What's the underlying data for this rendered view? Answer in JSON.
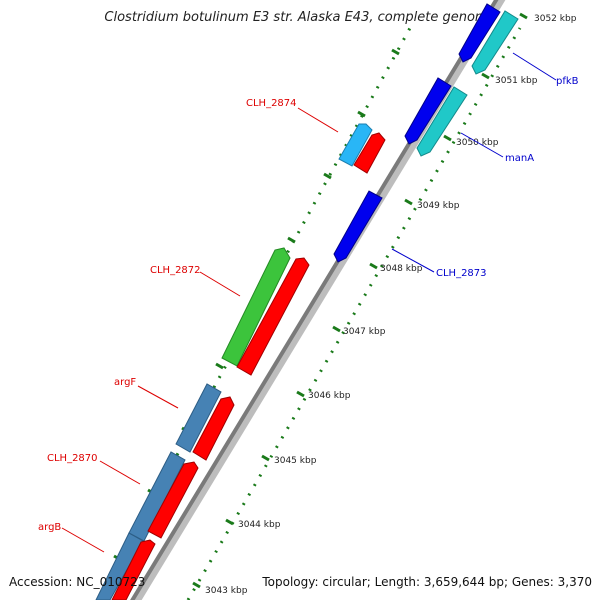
{
  "title": "Clostridium botulinum E3 str. Alaska E43, complete genome",
  "accession": "Accession: NC_010723",
  "topology": "Topology: circular; Length: 3,659,644 bp; Genes: 3,370",
  "colors": {
    "backbone": "#7a7a7a",
    "tick": "#1a7a1a",
    "label_red": "#dd0000",
    "label_blue": "#0000cc"
  },
  "scale_ticks": [
    {
      "label": "3043 kbp"
    },
    {
      "label": "3044 kbp"
    },
    {
      "label": "3045 kbp"
    },
    {
      "label": "3046 kbp"
    },
    {
      "label": "3047 kbp"
    },
    {
      "label": "3048 kbp"
    },
    {
      "label": "3049 kbp"
    },
    {
      "label": "3050 kbp"
    },
    {
      "label": "3051 kbp"
    },
    {
      "label": "3052 kbp"
    }
  ],
  "gene_labels": [
    {
      "text": "CLH_2874",
      "color": "#dd0000"
    },
    {
      "text": "CLH_2872",
      "color": "#dd0000"
    },
    {
      "text": "argF",
      "color": "#dd0000"
    },
    {
      "text": "CLH_2870",
      "color": "#dd0000"
    },
    {
      "text": "argB",
      "color": "#dd0000"
    },
    {
      "text": "pfkB",
      "color": "#0000cc"
    },
    {
      "text": "manA",
      "color": "#0000cc"
    },
    {
      "text": "CLH_2873",
      "color": "#0000cc"
    }
  ],
  "features": [
    {
      "track": "outer-left",
      "color": "#4682b4",
      "strand": "reverse"
    },
    {
      "track": "outer-left",
      "color": "#4682b4",
      "strand": "reverse"
    },
    {
      "track": "outer-left",
      "color": "#4682b4",
      "strand": "reverse"
    },
    {
      "track": "outer-left",
      "color": "#3cc43c",
      "strand": "forward"
    },
    {
      "track": "outer-left",
      "color": "#29b6f6",
      "strand": "forward"
    },
    {
      "track": "inner-left",
      "color": "#ff0000",
      "strand": "forward"
    },
    {
      "track": "inner-left",
      "color": "#ff0000",
      "strand": "forward"
    },
    {
      "track": "inner-left",
      "color": "#ff0000",
      "strand": "forward"
    },
    {
      "track": "inner-left",
      "color": "#ff0000",
      "strand": "forward"
    },
    {
      "track": "inner-left",
      "color": "#ff0000",
      "strand": "forward"
    },
    {
      "track": "inner-right",
      "color": "#0000ee",
      "strand": "reverse"
    },
    {
      "track": "inner-right",
      "color": "#0000ee",
      "strand": "reverse"
    },
    {
      "track": "inner-right",
      "color": "#0000ee",
      "strand": "reverse"
    },
    {
      "track": "outer-right",
      "color": "#20c8c8",
      "strand": "reverse"
    },
    {
      "track": "outer-right",
      "color": "#20c8c8",
      "strand": "reverse"
    }
  ]
}
